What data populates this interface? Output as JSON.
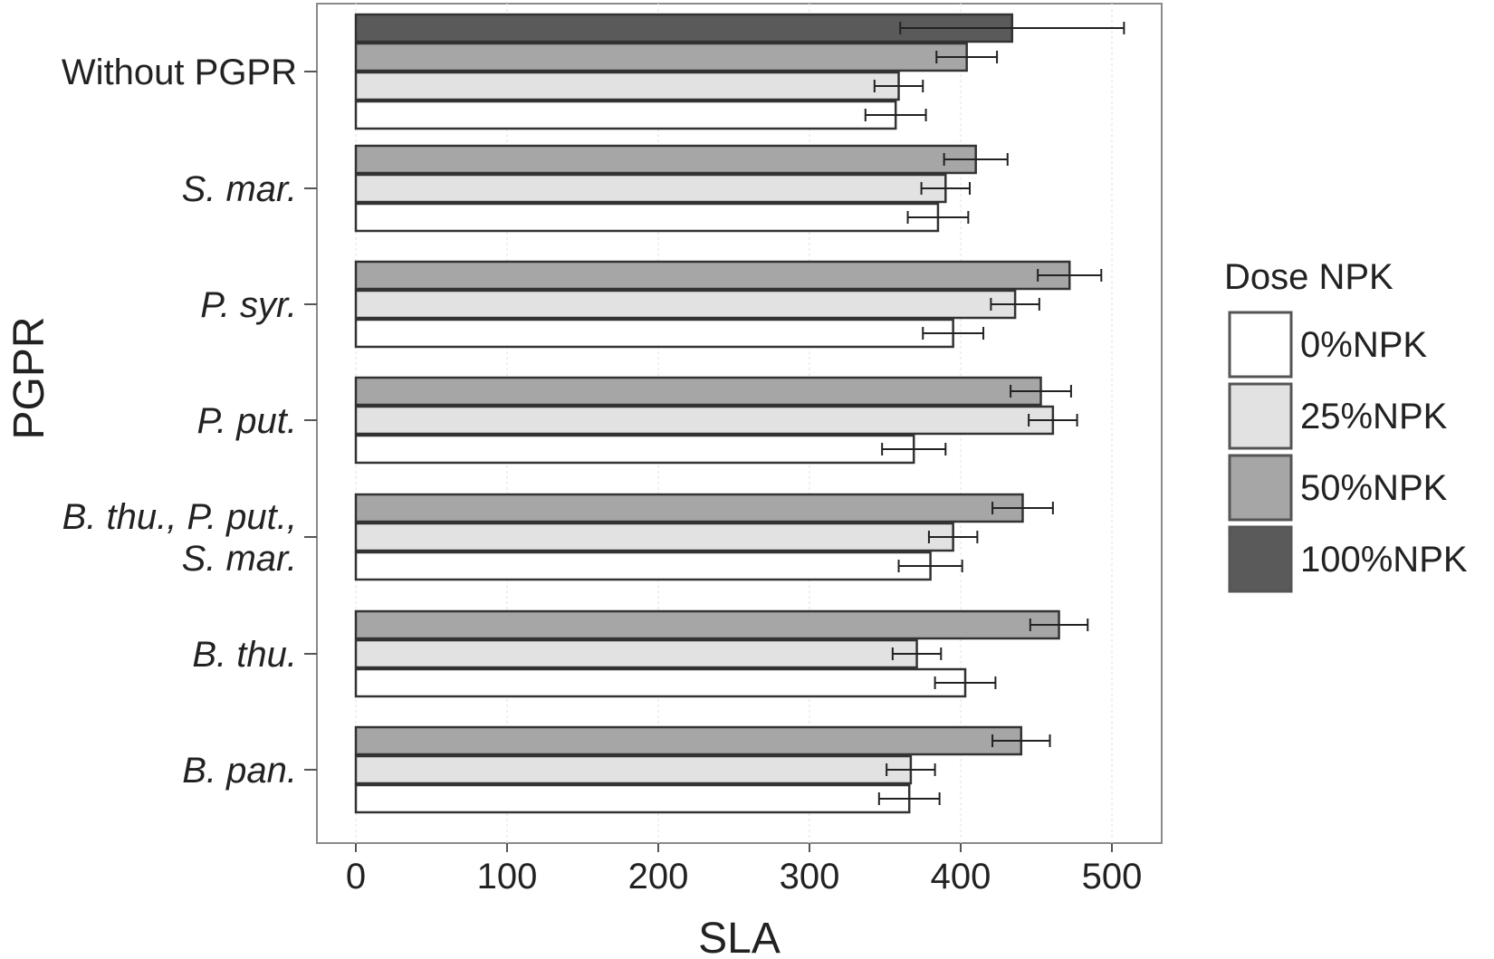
{
  "chart_data": {
    "type": "bar",
    "orientation": "horizontal",
    "xlabel": "SLA",
    "ylabel": "PGPR",
    "xlim": [
      0,
      535
    ],
    "xticks": [
      0,
      100,
      200,
      300,
      400,
      500
    ],
    "grid": true,
    "legend": {
      "title": "Dose NPK",
      "placement": "right",
      "entries": [
        "0%NPK",
        "25%NPK",
        "50%NPK",
        "100%NPK"
      ]
    },
    "colors": {
      "0%NPK": "#ffffff",
      "25%NPK": "#e2e2e2",
      "50%NPK": "#a6a6a6",
      "100%NPK": "#5a5a5a",
      "outline": "#333333",
      "error_bar": "#222222"
    },
    "categories": [
      {
        "label": "Without PGPR",
        "lines": [
          "Without PGPR"
        ],
        "italic": false,
        "bars": [
          {
            "series": "100%NPK",
            "value": 434,
            "error": 74
          },
          {
            "series": "50%NPK",
            "value": 404,
            "error": 20
          },
          {
            "series": "25%NPK",
            "value": 359,
            "error": 16
          },
          {
            "series": "0%NPK",
            "value": 357,
            "error": 20
          }
        ]
      },
      {
        "label": "S. mar.",
        "lines": [
          "S. mar."
        ],
        "italic": true,
        "bars": [
          {
            "series": "50%NPK",
            "value": 410,
            "error": 21
          },
          {
            "series": "25%NPK",
            "value": 390,
            "error": 16
          },
          {
            "series": "0%NPK",
            "value": 385,
            "error": 20
          }
        ]
      },
      {
        "label": "P. syr.",
        "lines": [
          "P. syr."
        ],
        "italic": true,
        "bars": [
          {
            "series": "50%NPK",
            "value": 472,
            "error": 21
          },
          {
            "series": "25%NPK",
            "value": 436,
            "error": 16
          },
          {
            "series": "0%NPK",
            "value": 395,
            "error": 20
          }
        ]
      },
      {
        "label": "P. put.",
        "lines": [
          "P. put."
        ],
        "italic": true,
        "bars": [
          {
            "series": "50%NPK",
            "value": 453,
            "error": 20
          },
          {
            "series": "25%NPK",
            "value": 461,
            "error": 16
          },
          {
            "series": "0%NPK",
            "value": 369,
            "error": 21
          }
        ]
      },
      {
        "label": "B. thu., P. put., S. mar.",
        "lines": [
          "B. thu., P. put.,",
          "S. mar."
        ],
        "italic": true,
        "bars": [
          {
            "series": "50%NPK",
            "value": 441,
            "error": 20
          },
          {
            "series": "25%NPK",
            "value": 395,
            "error": 16
          },
          {
            "series": "0%NPK",
            "value": 380,
            "error": 21
          }
        ]
      },
      {
        "label": "B. thu.",
        "lines": [
          "B. thu."
        ],
        "italic": true,
        "bars": [
          {
            "series": "50%NPK",
            "value": 465,
            "error": 19
          },
          {
            "series": "25%NPK",
            "value": 371,
            "error": 16
          },
          {
            "series": "0%NPK",
            "value": 403,
            "error": 20
          }
        ]
      },
      {
        "label": "B. pan.",
        "lines": [
          "B. pan."
        ],
        "italic": true,
        "bars": [
          {
            "series": "50%NPK",
            "value": 440,
            "error": 19
          },
          {
            "series": "25%NPK",
            "value": 367,
            "error": 16
          },
          {
            "series": "0%NPK",
            "value": 366,
            "error": 20
          }
        ]
      }
    ]
  }
}
